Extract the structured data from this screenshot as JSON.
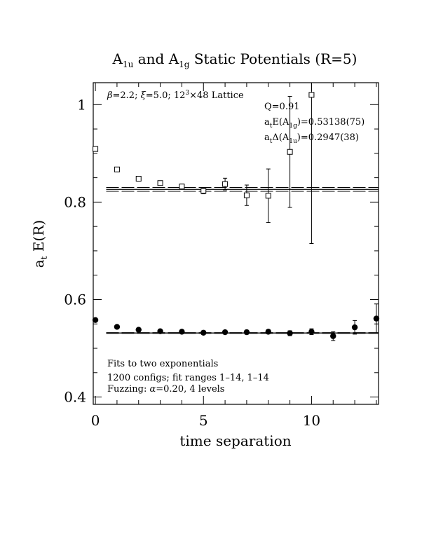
{
  "chart_data": {
    "type": "scatter",
    "title": {
      "main1": "A",
      "sub1": "1u",
      "main2": " and A",
      "sub2": "1g",
      "main3": " Static Potentials (R=5)"
    },
    "xlabel": "time separation",
    "ylabel": {
      "main": "a",
      "sub": "t",
      "rest": " E(R)"
    },
    "xlim": [
      -0.1,
      13.1
    ],
    "ylim": [
      0.385,
      1.045
    ],
    "x_major_ticks": [
      0,
      5,
      10
    ],
    "x_tick_labels": [
      "0",
      "5",
      "10"
    ],
    "x_minor_ticks": [
      1,
      2,
      3,
      4,
      6,
      7,
      8,
      9,
      11,
      12,
      13
    ],
    "y_major_ticks": [
      0.4,
      0.6,
      0.8,
      1.0
    ],
    "y_tick_labels": [
      "0.4",
      "0.6",
      "0.8",
      "1"
    ],
    "y_minor_ticks": [
      0.45,
      0.5,
      0.55,
      0.65,
      0.7,
      0.75,
      0.85,
      0.9,
      0.95
    ],
    "annotations": {
      "lattice": {
        "beta": "β",
        "xi": "ξ",
        "text_a": "=2.2; ",
        "text_b": "=5.0; 12",
        "sup": "3",
        "text_c": "×48 Lattice"
      },
      "q": "Q=0.91",
      "e1g": {
        "a": "a",
        "a_sub": "t",
        "mid": "E(A",
        "sub": "1g",
        "end": ")=0.53138(75)"
      },
      "delta1u": {
        "a": "a",
        "a_sub": "t",
        "mid": "Δ(A",
        "sub": "1u",
        "end": ")=0.2947(38)"
      },
      "fits_line1": "Fits to two exponentials",
      "fits_line2": "1200 configs; fit ranges 1–14, 1–14",
      "fuzzing": {
        "pre": "Fuzzing: ",
        "alpha": "α",
        "post": "=0.20, 4 levels"
      }
    },
    "series": [
      {
        "name": "A1u",
        "marker": "open-square",
        "points": [
          {
            "x": 0,
            "y": 0.909,
            "err": 0.003
          },
          {
            "x": 1,
            "y": 0.867,
            "err": 0.003
          },
          {
            "x": 2,
            "y": 0.848,
            "err": 0.003
          },
          {
            "x": 3,
            "y": 0.839,
            "err": 0.004
          },
          {
            "x": 4,
            "y": 0.832,
            "err": 0.005
          },
          {
            "x": 5,
            "y": 0.823,
            "err": 0.006
          },
          {
            "x": 6,
            "y": 0.837,
            "err": 0.012
          },
          {
            "x": 7,
            "y": 0.814,
            "err": 0.021
          },
          {
            "x": 8,
            "y": 0.813,
            "err": 0.055
          },
          {
            "x": 9,
            "y": 0.903,
            "err": 0.114
          },
          {
            "x": 10,
            "y": 1.02,
            "err": 0.305
          }
        ],
        "fit": {
          "value": 0.8261,
          "err": 0.004,
          "x_range": [
            0.5,
            13.1
          ]
        }
      },
      {
        "name": "A1g",
        "marker": "filled-circle",
        "points": [
          {
            "x": 0,
            "y": 0.558,
            "err": 0.002
          },
          {
            "x": 1,
            "y": 0.544,
            "err": 0.002
          },
          {
            "x": 2,
            "y": 0.538,
            "err": 0.002
          },
          {
            "x": 3,
            "y": 0.535,
            "err": 0.002
          },
          {
            "x": 4,
            "y": 0.534,
            "err": 0.002
          },
          {
            "x": 5,
            "y": 0.532,
            "err": 0.002
          },
          {
            "x": 6,
            "y": 0.533,
            "err": 0.003
          },
          {
            "x": 7,
            "y": 0.533,
            "err": 0.004
          },
          {
            "x": 8,
            "y": 0.534,
            "err": 0.004
          },
          {
            "x": 9,
            "y": 0.531,
            "err": 0.005
          },
          {
            "x": 10,
            "y": 0.534,
            "err": 0.006
          },
          {
            "x": 11,
            "y": 0.525,
            "err": 0.009
          },
          {
            "x": 12,
            "y": 0.543,
            "err": 0.014
          },
          {
            "x": 13,
            "y": 0.561,
            "err": 0.03
          }
        ],
        "fit": {
          "value": 0.53138,
          "err": 0.00075,
          "x_range": [
            0.5,
            13.1
          ]
        }
      }
    ]
  }
}
